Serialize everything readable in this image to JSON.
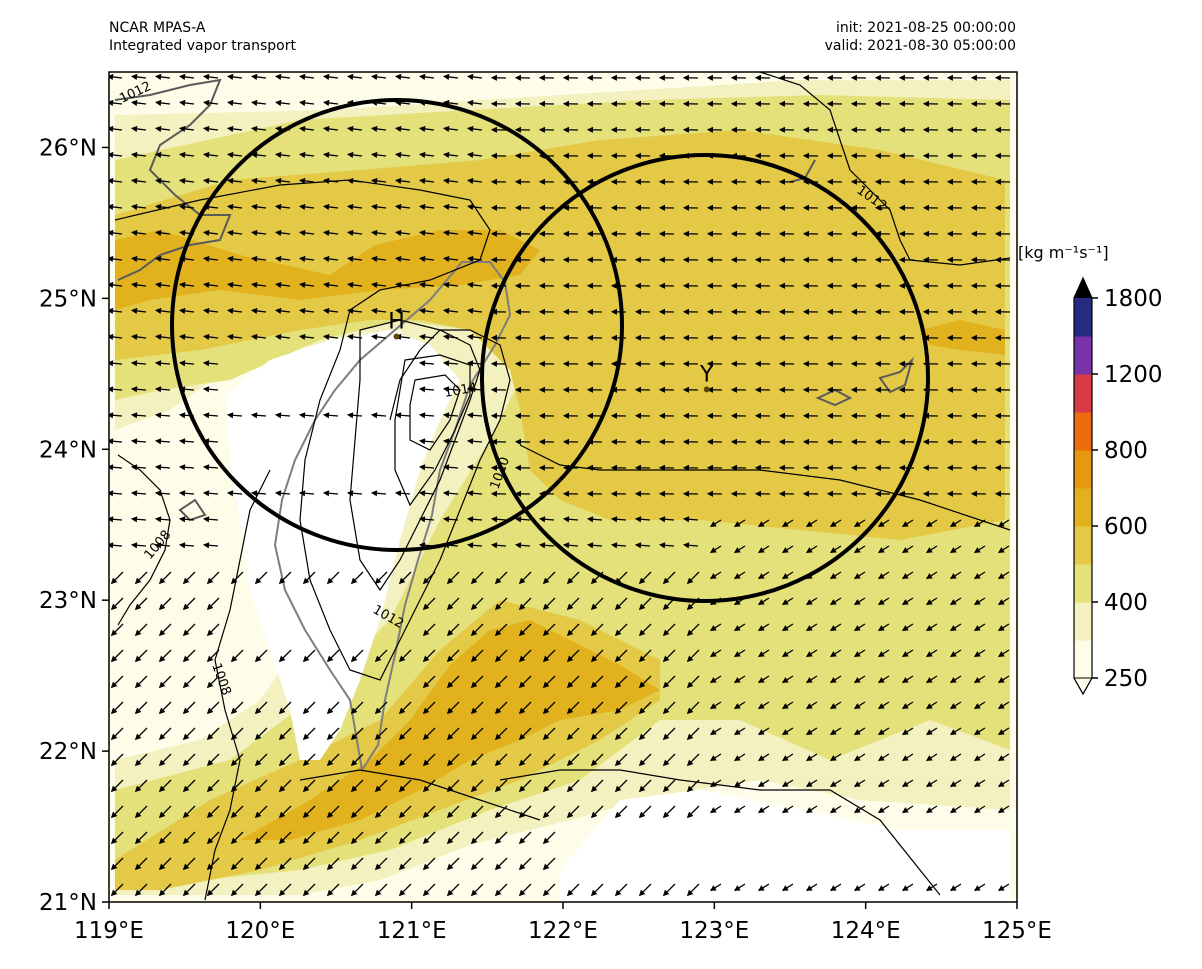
{
  "header": {
    "model": "NCAR MPAS-A",
    "field": "Integrated vapor transport",
    "init": "init: 2021-08-25 00:00:00",
    "valid": "valid: 2021-08-30 05:00:00"
  },
  "axes": {
    "lon_ticks": [
      "119°E",
      "120°E",
      "121°E",
      "122°E",
      "123°E",
      "124°E",
      "125°E"
    ],
    "lat_ticks": [
      "21°N",
      "22°N",
      "23°N",
      "24°N",
      "25°N",
      "26°N"
    ],
    "lon_range": [
      119,
      125
    ],
    "lat_range": [
      21,
      26.5
    ]
  },
  "colorbar": {
    "unit": "[kg m⁻¹s⁻¹]",
    "tick_labels": [
      "250",
      "400",
      "600",
      "800",
      "1200",
      "1800"
    ],
    "level_colors": [
      "#fdfde9",
      "#f3f1bf",
      "#e4e07a",
      "#e4c946",
      "#e2b21e",
      "#e89810",
      "#ec6c0e",
      "#d83a46",
      "#7a33a6",
      "#262a82"
    ],
    "over_color": "#000000"
  },
  "contour_labels": [
    "1012",
    "1012",
    "1014",
    "1010",
    "1008",
    "1012",
    "1008"
  ],
  "centers": [
    {
      "label": "H",
      "lon": 120.9,
      "lat": 24.8
    },
    {
      "label": "Y",
      "lon": 122.95,
      "lat": 24.45
    }
  ],
  "colors": {
    "land_outline": "#7d7d7d",
    "ocean_bg": "#fdfde9"
  }
}
